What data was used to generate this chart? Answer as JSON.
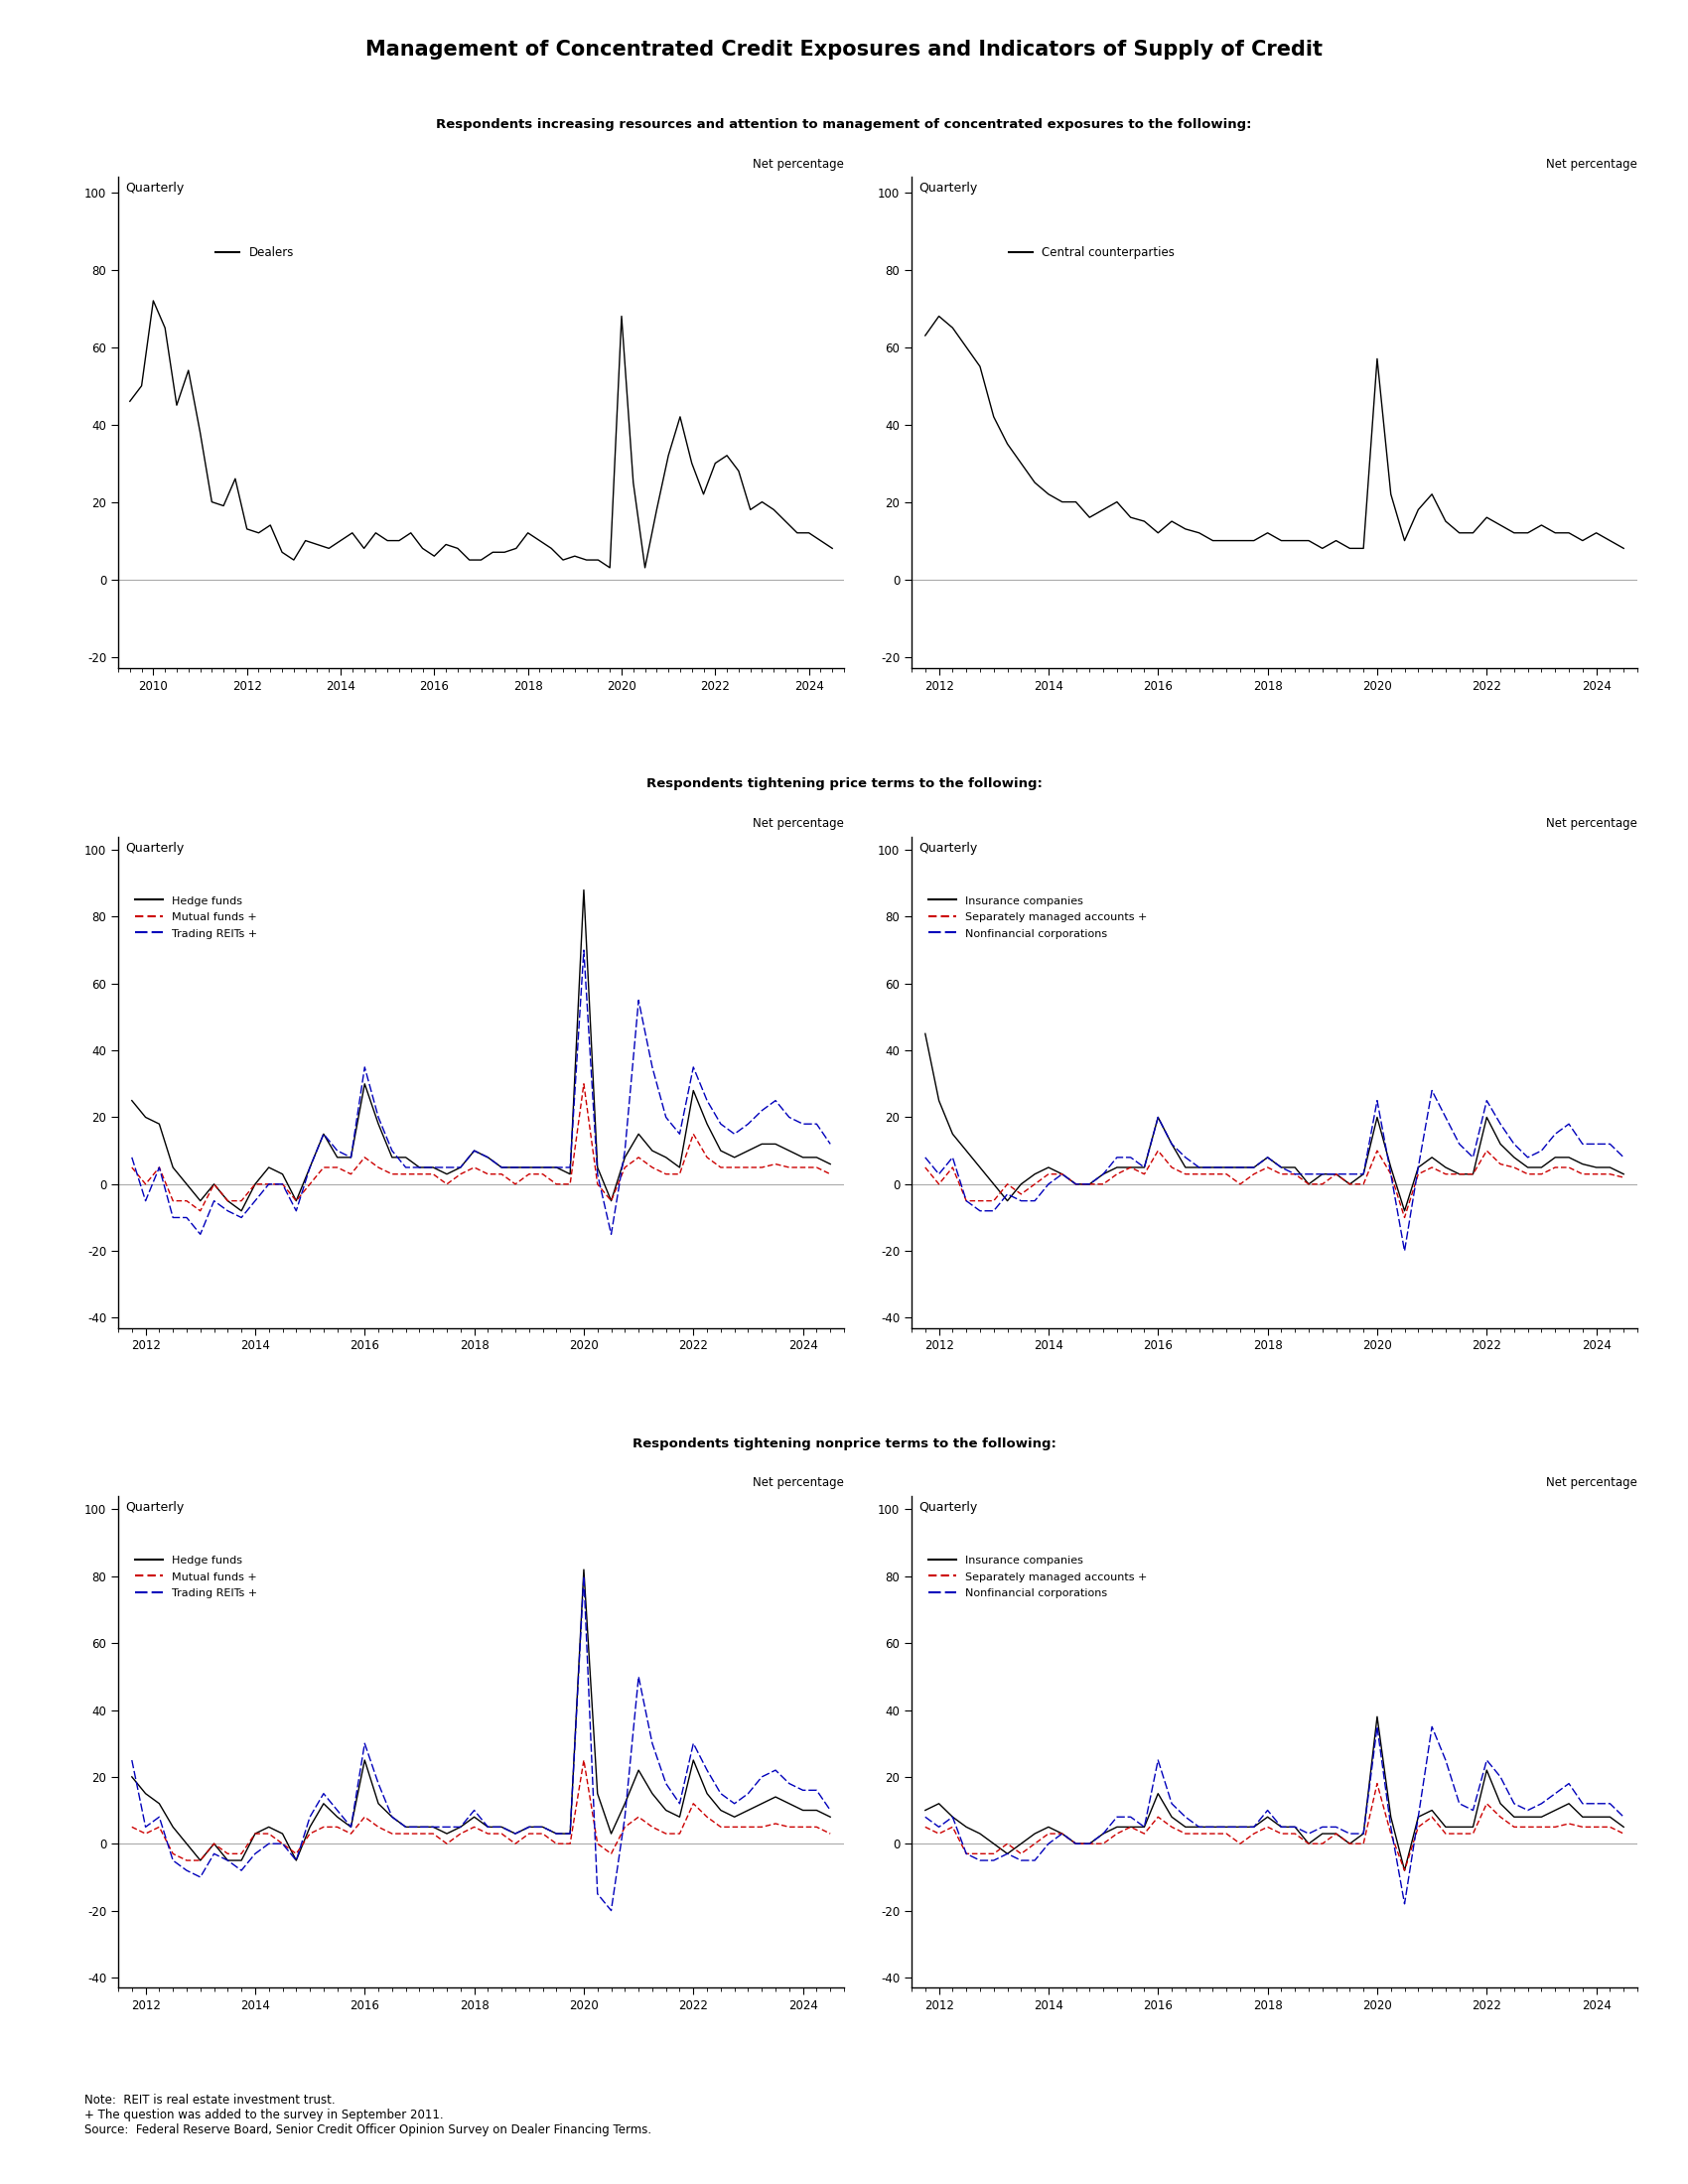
{
  "title": "Management of Concentrated Credit Exposures and Indicators of Supply of Credit",
  "subtitle1": "Respondents increasing resources and attention to management of concentrated exposures to the following:",
  "subtitle2": "Respondents tightening price terms to the following:",
  "subtitle3": "Respondents tightening nonprice terms to the following:",
  "note": "Note:  REIT is real estate investment trust.\n+ The question was added to the survey in September 2011.\nSource:  Federal Reserve Board, Senior Credit Officer Opinion Survey on Dealer Financing Terms.",
  "dealers_x": [
    2009.5,
    2009.75,
    2010.0,
    2010.25,
    2010.5,
    2010.75,
    2011.0,
    2011.25,
    2011.5,
    2011.75,
    2012.0,
    2012.25,
    2012.5,
    2012.75,
    2013.0,
    2013.25,
    2013.5,
    2013.75,
    2014.0,
    2014.25,
    2014.5,
    2014.75,
    2015.0,
    2015.25,
    2015.5,
    2015.75,
    2016.0,
    2016.25,
    2016.5,
    2016.75,
    2017.0,
    2017.25,
    2017.5,
    2017.75,
    2018.0,
    2018.25,
    2018.5,
    2018.75,
    2019.0,
    2019.25,
    2019.5,
    2019.75,
    2020.0,
    2020.25,
    2020.5,
    2020.75,
    2021.0,
    2021.25,
    2021.5,
    2021.75,
    2022.0,
    2022.25,
    2022.5,
    2022.75,
    2023.0,
    2023.25,
    2023.5,
    2023.75,
    2024.0,
    2024.25,
    2024.5
  ],
  "dealers_y": [
    46,
    50,
    72,
    65,
    45,
    54,
    38,
    20,
    19,
    26,
    13,
    12,
    14,
    7,
    5,
    10,
    9,
    8,
    10,
    12,
    8,
    12,
    10,
    10,
    12,
    8,
    6,
    9,
    8,
    5,
    5,
    7,
    7,
    8,
    12,
    10,
    8,
    5,
    6,
    5,
    5,
    3,
    68,
    25,
    3,
    18,
    32,
    42,
    30,
    22,
    30,
    32,
    28,
    18,
    20,
    18,
    15,
    12,
    12,
    10,
    8
  ],
  "ccps_x": [
    2011.75,
    2012.0,
    2012.25,
    2012.5,
    2012.75,
    2013.0,
    2013.25,
    2013.5,
    2013.75,
    2014.0,
    2014.25,
    2014.5,
    2014.75,
    2015.0,
    2015.25,
    2015.5,
    2015.75,
    2016.0,
    2016.25,
    2016.5,
    2016.75,
    2017.0,
    2017.25,
    2017.5,
    2017.75,
    2018.0,
    2018.25,
    2018.5,
    2018.75,
    2019.0,
    2019.25,
    2019.5,
    2019.75,
    2020.0,
    2020.25,
    2020.5,
    2020.75,
    2021.0,
    2021.25,
    2021.5,
    2021.75,
    2022.0,
    2022.25,
    2022.5,
    2022.75,
    2023.0,
    2023.25,
    2023.5,
    2023.75,
    2024.0,
    2024.25,
    2024.5
  ],
  "ccps_y": [
    63,
    68,
    65,
    60,
    55,
    42,
    35,
    30,
    25,
    22,
    20,
    20,
    16,
    18,
    20,
    16,
    15,
    12,
    15,
    13,
    12,
    10,
    10,
    10,
    10,
    12,
    10,
    10,
    10,
    8,
    10,
    8,
    8,
    57,
    22,
    10,
    18,
    22,
    15,
    12,
    12,
    16,
    14,
    12,
    12,
    14,
    12,
    12,
    10,
    12,
    10,
    8
  ],
  "p2l_hf_x": [
    2011.75,
    2012.0,
    2012.25,
    2012.5,
    2012.75,
    2013.0,
    2013.25,
    2013.5,
    2013.75,
    2014.0,
    2014.25,
    2014.5,
    2014.75,
    2015.0,
    2015.25,
    2015.5,
    2015.75,
    2016.0,
    2016.25,
    2016.5,
    2016.75,
    2017.0,
    2017.25,
    2017.5,
    2017.75,
    2018.0,
    2018.25,
    2018.5,
    2018.75,
    2019.0,
    2019.25,
    2019.5,
    2019.75,
    2020.0,
    2020.25,
    2020.5,
    2020.75,
    2021.0,
    2021.25,
    2021.5,
    2021.75,
    2022.0,
    2022.25,
    2022.5,
    2022.75,
    2023.0,
    2023.25,
    2023.5,
    2023.75,
    2024.0,
    2024.25,
    2024.5
  ],
  "p2l_hf_y": [
    25,
    20,
    18,
    5,
    0,
    -5,
    0,
    -5,
    -8,
    0,
    5,
    3,
    -5,
    5,
    15,
    8,
    8,
    30,
    18,
    8,
    8,
    5,
    5,
    3,
    5,
    10,
    8,
    5,
    5,
    5,
    5,
    5,
    3,
    88,
    5,
    -5,
    8,
    15,
    10,
    8,
    5,
    28,
    18,
    10,
    8,
    10,
    12,
    12,
    10,
    8,
    8,
    6
  ],
  "p2l_mf_x": [
    2011.75,
    2012.0,
    2012.25,
    2012.5,
    2012.75,
    2013.0,
    2013.25,
    2013.5,
    2013.75,
    2014.0,
    2014.25,
    2014.5,
    2014.75,
    2015.0,
    2015.25,
    2015.5,
    2015.75,
    2016.0,
    2016.25,
    2016.5,
    2016.75,
    2017.0,
    2017.25,
    2017.5,
    2017.75,
    2018.0,
    2018.25,
    2018.5,
    2018.75,
    2019.0,
    2019.25,
    2019.5,
    2019.75,
    2020.0,
    2020.25,
    2020.5,
    2020.75,
    2021.0,
    2021.25,
    2021.5,
    2021.75,
    2022.0,
    2022.25,
    2022.5,
    2022.75,
    2023.0,
    2023.25,
    2023.5,
    2023.75,
    2024.0,
    2024.25,
    2024.5
  ],
  "p2l_mf_y": [
    5,
    0,
    5,
    -5,
    -5,
    -8,
    0,
    -5,
    -5,
    0,
    0,
    0,
    -5,
    0,
    5,
    5,
    3,
    8,
    5,
    3,
    3,
    3,
    3,
    0,
    3,
    5,
    3,
    3,
    0,
    3,
    3,
    0,
    0,
    30,
    0,
    -5,
    5,
    8,
    5,
    3,
    3,
    15,
    8,
    5,
    5,
    5,
    5,
    6,
    5,
    5,
    5,
    3
  ],
  "p2l_reits_x": [
    2011.75,
    2012.0,
    2012.25,
    2012.5,
    2012.75,
    2013.0,
    2013.25,
    2013.5,
    2013.75,
    2014.0,
    2014.25,
    2014.5,
    2014.75,
    2015.0,
    2015.25,
    2015.5,
    2015.75,
    2016.0,
    2016.25,
    2016.5,
    2016.75,
    2017.0,
    2017.25,
    2017.5,
    2017.75,
    2018.0,
    2018.25,
    2018.5,
    2018.75,
    2019.0,
    2019.25,
    2019.5,
    2019.75,
    2020.0,
    2020.25,
    2020.5,
    2020.75,
    2021.0,
    2021.25,
    2021.5,
    2021.75,
    2022.0,
    2022.25,
    2022.5,
    2022.75,
    2023.0,
    2023.25,
    2023.5,
    2023.75,
    2024.0,
    2024.25,
    2024.5
  ],
  "p2l_reits_y": [
    8,
    -5,
    5,
    -10,
    -10,
    -15,
    -5,
    -8,
    -10,
    -5,
    0,
    0,
    -8,
    5,
    15,
    10,
    8,
    35,
    20,
    10,
    5,
    5,
    5,
    5,
    5,
    10,
    8,
    5,
    5,
    5,
    5,
    5,
    5,
    70,
    3,
    -15,
    10,
    55,
    35,
    20,
    15,
    35,
    25,
    18,
    15,
    18,
    22,
    25,
    20,
    18,
    18,
    12
  ],
  "p2r_ins_x": [
    2011.75,
    2012.0,
    2012.25,
    2012.5,
    2012.75,
    2013.0,
    2013.25,
    2013.5,
    2013.75,
    2014.0,
    2014.25,
    2014.5,
    2014.75,
    2015.0,
    2015.25,
    2015.5,
    2015.75,
    2016.0,
    2016.25,
    2016.5,
    2016.75,
    2017.0,
    2017.25,
    2017.5,
    2017.75,
    2018.0,
    2018.25,
    2018.5,
    2018.75,
    2019.0,
    2019.25,
    2019.5,
    2019.75,
    2020.0,
    2020.25,
    2020.5,
    2020.75,
    2021.0,
    2021.25,
    2021.5,
    2021.75,
    2022.0,
    2022.25,
    2022.5,
    2022.75,
    2023.0,
    2023.25,
    2023.5,
    2023.75,
    2024.0,
    2024.25,
    2024.5
  ],
  "p2r_ins_y": [
    45,
    25,
    15,
    10,
    5,
    0,
    -5,
    0,
    3,
    5,
    3,
    0,
    0,
    3,
    5,
    5,
    5,
    20,
    12,
    5,
    5,
    5,
    5,
    5,
    5,
    8,
    5,
    5,
    0,
    3,
    3,
    0,
    3,
    20,
    5,
    -8,
    5,
    8,
    5,
    3,
    3,
    20,
    12,
    8,
    5,
    5,
    8,
    8,
    6,
    5,
    5,
    3
  ],
  "p2r_sma_x": [
    2011.75,
    2012.0,
    2012.25,
    2012.5,
    2012.75,
    2013.0,
    2013.25,
    2013.5,
    2013.75,
    2014.0,
    2014.25,
    2014.5,
    2014.75,
    2015.0,
    2015.25,
    2015.5,
    2015.75,
    2016.0,
    2016.25,
    2016.5,
    2016.75,
    2017.0,
    2017.25,
    2017.5,
    2017.75,
    2018.0,
    2018.25,
    2018.5,
    2018.75,
    2019.0,
    2019.25,
    2019.5,
    2019.75,
    2020.0,
    2020.25,
    2020.5,
    2020.75,
    2021.0,
    2021.25,
    2021.5,
    2021.75,
    2022.0,
    2022.25,
    2022.5,
    2022.75,
    2023.0,
    2023.25,
    2023.5,
    2023.75,
    2024.0,
    2024.25,
    2024.5
  ],
  "p2r_sma_y": [
    5,
    0,
    5,
    -5,
    -5,
    -5,
    0,
    -3,
    0,
    3,
    3,
    0,
    0,
    0,
    3,
    5,
    3,
    10,
    5,
    3,
    3,
    3,
    3,
    0,
    3,
    5,
    3,
    3,
    0,
    0,
    3,
    0,
    0,
    10,
    3,
    -10,
    3,
    5,
    3,
    3,
    3,
    10,
    6,
    5,
    3,
    3,
    5,
    5,
    3,
    3,
    3,
    2
  ],
  "p2r_nfc_x": [
    2011.75,
    2012.0,
    2012.25,
    2012.5,
    2012.75,
    2013.0,
    2013.25,
    2013.5,
    2013.75,
    2014.0,
    2014.25,
    2014.5,
    2014.75,
    2015.0,
    2015.25,
    2015.5,
    2015.75,
    2016.0,
    2016.25,
    2016.5,
    2016.75,
    2017.0,
    2017.25,
    2017.5,
    2017.75,
    2018.0,
    2018.25,
    2018.5,
    2018.75,
    2019.0,
    2019.25,
    2019.5,
    2019.75,
    2020.0,
    2020.25,
    2020.5,
    2020.75,
    2021.0,
    2021.25,
    2021.5,
    2021.75,
    2022.0,
    2022.25,
    2022.5,
    2022.75,
    2023.0,
    2023.25,
    2023.5,
    2023.75,
    2024.0,
    2024.25,
    2024.5
  ],
  "p2r_nfc_y": [
    8,
    3,
    8,
    -5,
    -8,
    -8,
    -3,
    -5,
    -5,
    0,
    3,
    0,
    0,
    3,
    8,
    8,
    5,
    20,
    12,
    8,
    5,
    5,
    5,
    5,
    5,
    8,
    5,
    3,
    3,
    3,
    3,
    3,
    3,
    25,
    3,
    -20,
    5,
    28,
    20,
    12,
    8,
    25,
    18,
    12,
    8,
    10,
    15,
    18,
    12,
    12,
    12,
    8
  ],
  "p3l_hf_x": [
    2011.75,
    2012.0,
    2012.25,
    2012.5,
    2012.75,
    2013.0,
    2013.25,
    2013.5,
    2013.75,
    2014.0,
    2014.25,
    2014.5,
    2014.75,
    2015.0,
    2015.25,
    2015.5,
    2015.75,
    2016.0,
    2016.25,
    2016.5,
    2016.75,
    2017.0,
    2017.25,
    2017.5,
    2017.75,
    2018.0,
    2018.25,
    2018.5,
    2018.75,
    2019.0,
    2019.25,
    2019.5,
    2019.75,
    2020.0,
    2020.25,
    2020.5,
    2020.75,
    2021.0,
    2021.25,
    2021.5,
    2021.75,
    2022.0,
    2022.25,
    2022.5,
    2022.75,
    2023.0,
    2023.25,
    2023.5,
    2023.75,
    2024.0,
    2024.25,
    2024.5
  ],
  "p3l_hf_y": [
    20,
    15,
    12,
    5,
    0,
    -5,
    0,
    -5,
    -5,
    3,
    5,
    3,
    -5,
    5,
    12,
    8,
    5,
    25,
    12,
    8,
    5,
    5,
    5,
    3,
    5,
    8,
    5,
    5,
    3,
    5,
    5,
    3,
    3,
    82,
    15,
    3,
    12,
    22,
    15,
    10,
    8,
    25,
    15,
    10,
    8,
    10,
    12,
    14,
    12,
    10,
    10,
    8
  ],
  "p3l_mf_x": [
    2011.75,
    2012.0,
    2012.25,
    2012.5,
    2012.75,
    2013.0,
    2013.25,
    2013.5,
    2013.75,
    2014.0,
    2014.25,
    2014.5,
    2014.75,
    2015.0,
    2015.25,
    2015.5,
    2015.75,
    2016.0,
    2016.25,
    2016.5,
    2016.75,
    2017.0,
    2017.25,
    2017.5,
    2017.75,
    2018.0,
    2018.25,
    2018.5,
    2018.75,
    2019.0,
    2019.25,
    2019.5,
    2019.75,
    2020.0,
    2020.25,
    2020.5,
    2020.75,
    2021.0,
    2021.25,
    2021.5,
    2021.75,
    2022.0,
    2022.25,
    2022.5,
    2022.75,
    2023.0,
    2023.25,
    2023.5,
    2023.75,
    2024.0,
    2024.25,
    2024.5
  ],
  "p3l_mf_y": [
    5,
    3,
    5,
    -3,
    -5,
    -5,
    0,
    -3,
    -3,
    3,
    3,
    0,
    -3,
    3,
    5,
    5,
    3,
    8,
    5,
    3,
    3,
    3,
    3,
    0,
    3,
    5,
    3,
    3,
    0,
    3,
    3,
    0,
    0,
    25,
    0,
    -3,
    5,
    8,
    5,
    3,
    3,
    12,
    8,
    5,
    5,
    5,
    5,
    6,
    5,
    5,
    5,
    3
  ],
  "p3l_reits_x": [
    2011.75,
    2012.0,
    2012.25,
    2012.5,
    2012.75,
    2013.0,
    2013.25,
    2013.5,
    2013.75,
    2014.0,
    2014.25,
    2014.5,
    2014.75,
    2015.0,
    2015.25,
    2015.5,
    2015.75,
    2016.0,
    2016.25,
    2016.5,
    2016.75,
    2017.0,
    2017.25,
    2017.5,
    2017.75,
    2018.0,
    2018.25,
    2018.5,
    2018.75,
    2019.0,
    2019.25,
    2019.5,
    2019.75,
    2020.0,
    2020.25,
    2020.5,
    2020.75,
    2021.0,
    2021.25,
    2021.5,
    2021.75,
    2022.0,
    2022.25,
    2022.5,
    2022.75,
    2023.0,
    2023.25,
    2023.5,
    2023.75,
    2024.0,
    2024.25,
    2024.5
  ],
  "p3l_reits_y": [
    25,
    5,
    8,
    -5,
    -8,
    -10,
    -3,
    -5,
    -8,
    -3,
    0,
    0,
    -5,
    8,
    15,
    10,
    5,
    30,
    18,
    8,
    5,
    5,
    5,
    5,
    5,
    10,
    5,
    5,
    3,
    5,
    5,
    3,
    3,
    80,
    -15,
    -20,
    8,
    50,
    30,
    18,
    12,
    30,
    22,
    15,
    12,
    15,
    20,
    22,
    18,
    16,
    16,
    10
  ],
  "p3r_ins_x": [
    2011.75,
    2012.0,
    2012.25,
    2012.5,
    2012.75,
    2013.0,
    2013.25,
    2013.5,
    2013.75,
    2014.0,
    2014.25,
    2014.5,
    2014.75,
    2015.0,
    2015.25,
    2015.5,
    2015.75,
    2016.0,
    2016.25,
    2016.5,
    2016.75,
    2017.0,
    2017.25,
    2017.5,
    2017.75,
    2018.0,
    2018.25,
    2018.5,
    2018.75,
    2019.0,
    2019.25,
    2019.5,
    2019.75,
    2020.0,
    2020.25,
    2020.5,
    2020.75,
    2021.0,
    2021.25,
    2021.5,
    2021.75,
    2022.0,
    2022.25,
    2022.5,
    2022.75,
    2023.0,
    2023.25,
    2023.5,
    2023.75,
    2024.0,
    2024.25,
    2024.5
  ],
  "p3r_ins_y": [
    10,
    12,
    8,
    5,
    3,
    0,
    -3,
    0,
    3,
    5,
    3,
    0,
    0,
    3,
    5,
    5,
    5,
    15,
    8,
    5,
    5,
    5,
    5,
    5,
    5,
    8,
    5,
    5,
    0,
    3,
    3,
    0,
    3,
    38,
    8,
    -8,
    8,
    10,
    5,
    5,
    5,
    22,
    12,
    8,
    8,
    8,
    10,
    12,
    8,
    8,
    8,
    5
  ],
  "p3r_sma_x": [
    2011.75,
    2012.0,
    2012.25,
    2012.5,
    2012.75,
    2013.0,
    2013.25,
    2013.5,
    2013.75,
    2014.0,
    2014.25,
    2014.5,
    2014.75,
    2015.0,
    2015.25,
    2015.5,
    2015.75,
    2016.0,
    2016.25,
    2016.5,
    2016.75,
    2017.0,
    2017.25,
    2017.5,
    2017.75,
    2018.0,
    2018.25,
    2018.5,
    2018.75,
    2019.0,
    2019.25,
    2019.5,
    2019.75,
    2020.0,
    2020.25,
    2020.5,
    2020.75,
    2021.0,
    2021.25,
    2021.5,
    2021.75,
    2022.0,
    2022.25,
    2022.5,
    2022.75,
    2023.0,
    2023.25,
    2023.5,
    2023.75,
    2024.0,
    2024.25,
    2024.5
  ],
  "p3r_sma_y": [
    5,
    3,
    5,
    -3,
    -3,
    -3,
    0,
    -3,
    0,
    3,
    3,
    0,
    0,
    0,
    3,
    5,
    3,
    8,
    5,
    3,
    3,
    3,
    3,
    0,
    3,
    5,
    3,
    3,
    0,
    0,
    3,
    0,
    0,
    18,
    3,
    -8,
    5,
    8,
    3,
    3,
    3,
    12,
    8,
    5,
    5,
    5,
    5,
    6,
    5,
    5,
    5,
    3
  ],
  "p3r_nfc_x": [
    2011.75,
    2012.0,
    2012.25,
    2012.5,
    2012.75,
    2013.0,
    2013.25,
    2013.5,
    2013.75,
    2014.0,
    2014.25,
    2014.5,
    2014.75,
    2015.0,
    2015.25,
    2015.5,
    2015.75,
    2016.0,
    2016.25,
    2016.5,
    2016.75,
    2017.0,
    2017.25,
    2017.5,
    2017.75,
    2018.0,
    2018.25,
    2018.5,
    2018.75,
    2019.0,
    2019.25,
    2019.5,
    2019.75,
    2020.0,
    2020.25,
    2020.5,
    2020.75,
    2021.0,
    2021.25,
    2021.5,
    2021.75,
    2022.0,
    2022.25,
    2022.5,
    2022.75,
    2023.0,
    2023.25,
    2023.5,
    2023.75,
    2024.0,
    2024.25,
    2024.5
  ],
  "p3r_nfc_y": [
    8,
    5,
    8,
    -3,
    -5,
    -5,
    -3,
    -5,
    -5,
    0,
    3,
    0,
    0,
    3,
    8,
    8,
    5,
    25,
    12,
    8,
    5,
    5,
    5,
    5,
    5,
    10,
    5,
    5,
    3,
    5,
    5,
    3,
    3,
    35,
    5,
    -18,
    8,
    35,
    25,
    12,
    10,
    25,
    20,
    12,
    10,
    12,
    15,
    18,
    12,
    12,
    12,
    8
  ]
}
